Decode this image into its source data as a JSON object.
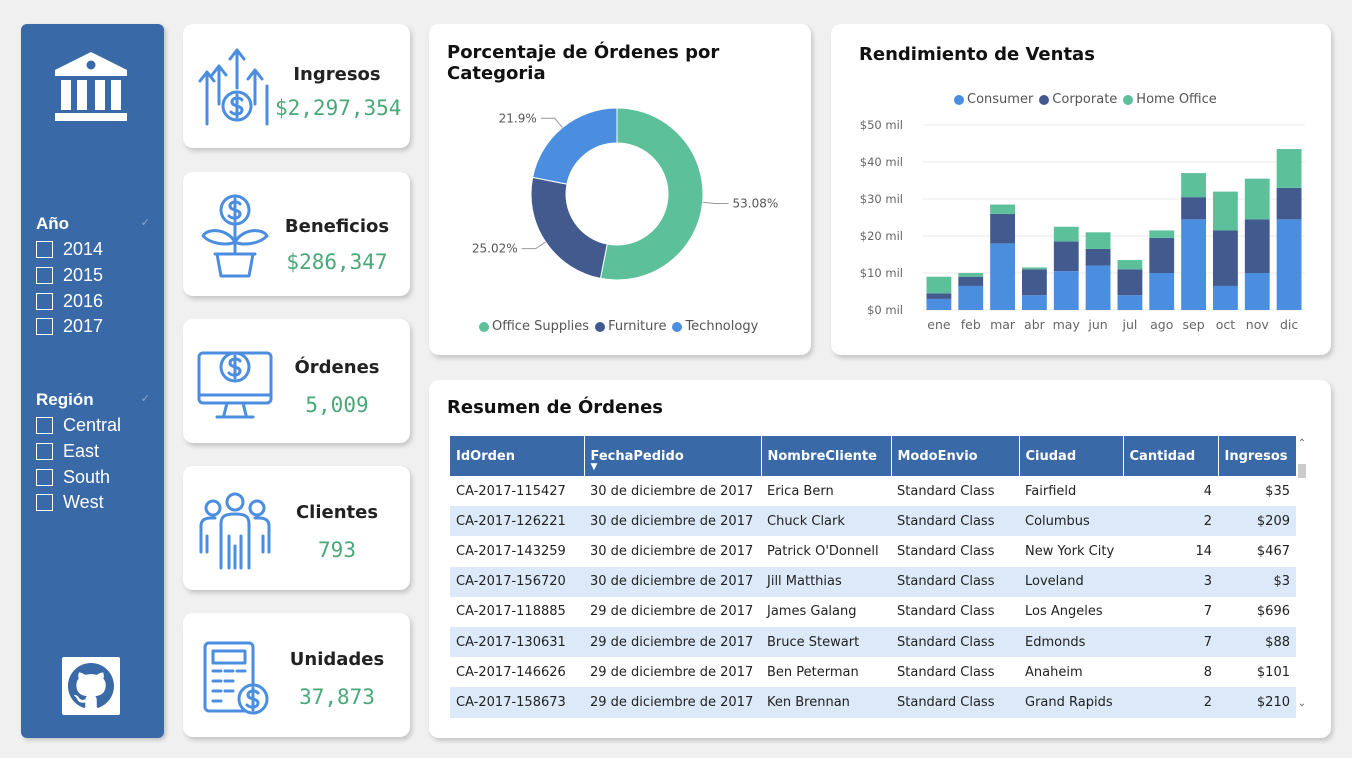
{
  "colors": {
    "sidebar": "#3a69a8",
    "accent_green": "#49a878",
    "office_supplies": "#5cc19a",
    "furniture": "#435a8e",
    "technology": "#4b8ddf",
    "consumer": "#4b8ddf",
    "corporate": "#435a8e",
    "home_office": "#5cc19a"
  },
  "sidebar": {
    "logo_icon": "bank-icon",
    "year_filter": {
      "title": "Año",
      "options": [
        "2014",
        "2015",
        "2016",
        "2017"
      ]
    },
    "region_filter": {
      "title": "Región",
      "options": [
        "Central",
        "East",
        "South",
        "West"
      ]
    },
    "github_icon": "github-icon"
  },
  "kpis": [
    {
      "label": "Ingresos",
      "value": "$2,297,354",
      "icon": "revenue-growth-icon"
    },
    {
      "label": "Beneficios",
      "value": "$286,347",
      "icon": "money-plant-icon"
    },
    {
      "label": "Órdenes",
      "value": "5,009",
      "icon": "computer-dollar-icon"
    },
    {
      "label": "Clientes",
      "value": "793",
      "icon": "people-icon"
    },
    {
      "label": "Unidades",
      "value": "37,873",
      "icon": "calculator-dollar-icon"
    }
  ],
  "donut_card": {
    "title": "Porcentaje de Órdenes por Categoria"
  },
  "bar_card": {
    "title": "Rendimiento de Ventas"
  },
  "table_card": {
    "title": "Resumen de Órdenes",
    "columns": [
      "IdOrden",
      "FechaPedido",
      "NombreCliente",
      "ModoEnvio",
      "Ciudad",
      "Cantidad",
      "Ingresos"
    ],
    "rows": [
      [
        "CA-2017-115427",
        "30 de diciembre de 2017",
        "Erica Bern",
        "Standard Class",
        "Fairfield",
        "4",
        "$35"
      ],
      [
        "CA-2017-126221",
        "30 de diciembre de 2017",
        "Chuck Clark",
        "Standard Class",
        "Columbus",
        "2",
        "$209"
      ],
      [
        "CA-2017-143259",
        "30 de diciembre de 2017",
        "Patrick O'Donnell",
        "Standard Class",
        "New York City",
        "14",
        "$467"
      ],
      [
        "CA-2017-156720",
        "30 de diciembre de 2017",
        "Jill Matthias",
        "Standard Class",
        "Loveland",
        "3",
        "$3"
      ],
      [
        "CA-2017-118885",
        "29 de diciembre de 2017",
        "James Galang",
        "Standard Class",
        "Los Angeles",
        "7",
        "$696"
      ],
      [
        "CA-2017-130631",
        "29 de diciembre de 2017",
        "Bruce Stewart",
        "Standard Class",
        "Edmonds",
        "7",
        "$88"
      ],
      [
        "CA-2017-146626",
        "29 de diciembre de 2017",
        "Ben Peterman",
        "Standard Class",
        "Anaheim",
        "8",
        "$101"
      ],
      [
        "CA-2017-158673",
        "29 de diciembre de 2017",
        "Ken Brennan",
        "Standard Class",
        "Grand Rapids",
        "2",
        "$210"
      ]
    ]
  },
  "chart_data": [
    {
      "type": "pie",
      "donut": true,
      "title": "Porcentaje de Órdenes por Categoria",
      "labels": [
        "Office Supplies",
        "Furniture",
        "Technology"
      ],
      "values": [
        53.08,
        25.02,
        21.9
      ],
      "value_labels": [
        "53.08%",
        "25.02%",
        "21.9%"
      ],
      "legend_position": "bottom"
    },
    {
      "type": "bar",
      "stacked": true,
      "title": "Rendimiento de Ventas",
      "categories": [
        "ene",
        "feb",
        "mar",
        "abr",
        "may",
        "jun",
        "jul",
        "ago",
        "sep",
        "oct",
        "nov",
        "dic"
      ],
      "series": [
        {
          "name": "Consumer",
          "values": [
            3,
            6.5,
            18,
            4,
            10.5,
            12,
            4,
            10,
            24.5,
            6.5,
            10,
            24.5
          ]
        },
        {
          "name": "Corporate",
          "values": [
            1.5,
            2.5,
            8,
            7,
            8,
            4.5,
            7,
            9.5,
            6,
            15,
            14.5,
            8.5
          ]
        },
        {
          "name": "Home Office",
          "values": [
            4.5,
            1,
            2.5,
            0.5,
            4,
            4.5,
            2.5,
            2,
            6.5,
            10.5,
            11,
            10.5
          ]
        }
      ],
      "ylim": [
        0,
        50
      ],
      "yticks": [
        "$0 mil",
        "$10 mil",
        "$20 mil",
        "$30 mil",
        "$40 mil",
        "$50 mil"
      ],
      "legend_position": "top",
      "grid": true
    }
  ]
}
